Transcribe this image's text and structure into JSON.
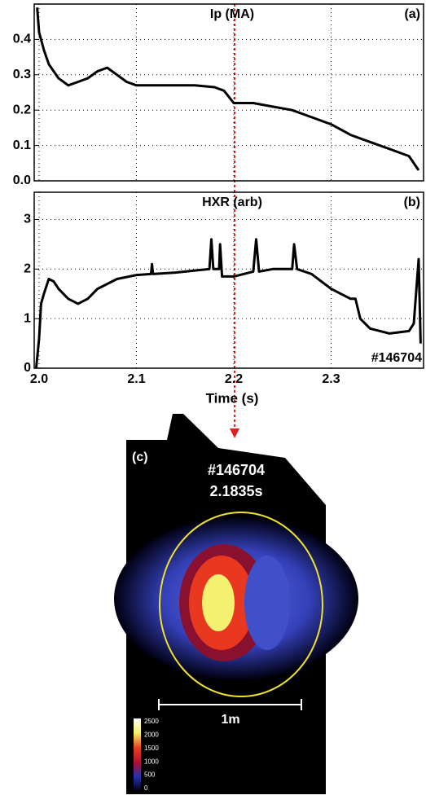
{
  "chart_data": [
    {
      "type": "line",
      "title": "Ip (MA)",
      "panel_label": "(a)",
      "color": "#000000",
      "grid": true,
      "x": [
        1.998,
        2.0,
        2.005,
        2.01,
        2.02,
        2.03,
        2.04,
        2.05,
        2.06,
        2.07,
        2.08,
        2.09,
        2.1,
        2.12,
        2.14,
        2.16,
        2.18,
        2.19,
        2.2,
        2.22,
        2.24,
        2.26,
        2.28,
        2.3,
        2.32,
        2.34,
        2.36,
        2.38,
        2.39
      ],
      "values": [
        0.49,
        0.42,
        0.37,
        0.33,
        0.29,
        0.27,
        0.28,
        0.29,
        0.31,
        0.32,
        0.3,
        0.28,
        0.27,
        0.27,
        0.27,
        0.27,
        0.265,
        0.255,
        0.22,
        0.22,
        0.21,
        0.2,
        0.18,
        0.16,
        0.13,
        0.11,
        0.09,
        0.07,
        0.03
      ],
      "xlim": [
        1.995,
        2.395
      ],
      "ylim": [
        0,
        0.5
      ],
      "yticks": [
        {
          "value": 0,
          "label": "0.0"
        },
        0.1,
        0.2,
        0.3,
        0.4
      ]
    },
    {
      "type": "line",
      "title": "HXR (arb)",
      "panel_label": "(b)",
      "annotation": "#146704",
      "x_label": "Time (s)",
      "color": "#000000",
      "grid": true,
      "x": [
        1.997,
        2.0,
        2.002,
        2.005,
        2.01,
        2.015,
        2.02,
        2.03,
        2.04,
        2.05,
        2.06,
        2.08,
        2.1,
        2.115,
        2.116,
        2.117,
        2.14,
        2.16,
        2.175,
        2.177,
        2.179,
        2.185,
        2.186,
        2.188,
        2.2,
        2.22,
        2.223,
        2.226,
        2.24,
        2.26,
        2.262,
        2.265,
        2.28,
        2.3,
        2.32,
        2.325,
        2.33,
        2.34,
        2.36,
        2.38,
        2.385,
        2.39,
        2.392
      ],
      "values": [
        0,
        0.6,
        1.3,
        1.5,
        1.8,
        1.75,
        1.6,
        1.4,
        1.3,
        1.4,
        1.6,
        1.8,
        1.88,
        1.9,
        2.1,
        1.9,
        1.93,
        1.97,
        2.0,
        2.6,
        2.0,
        2.0,
        2.5,
        1.85,
        1.85,
        1.95,
        2.6,
        1.95,
        2.0,
        2.0,
        2.5,
        2.0,
        1.9,
        1.6,
        1.4,
        1.4,
        1.0,
        0.8,
        0.7,
        0.75,
        0.9,
        2.2,
        0.5
      ],
      "xlim": [
        1.995,
        2.395
      ],
      "ylim": [
        0,
        3.55
      ],
      "xticks": [
        {
          "value": 2,
          "label": "2.0"
        },
        2.1,
        2.2,
        2.3
      ],
      "yticks": [
        0,
        1,
        2,
        3
      ]
    }
  ],
  "image_panel": {
    "panel_label": "(c)",
    "shot": "#146704",
    "time": "2.1835s",
    "scale_label": "1m",
    "colorbar_ticks": [
      2500,
      2000,
      1500,
      1000,
      500,
      0
    ]
  }
}
